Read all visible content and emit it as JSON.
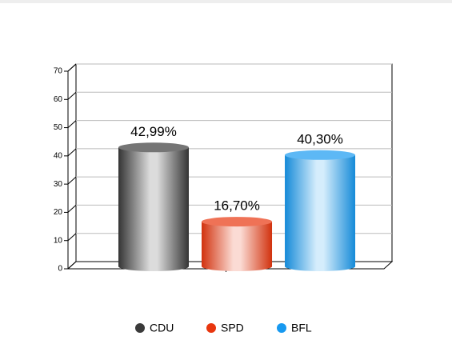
{
  "chart_data": {
    "type": "bar",
    "categories": [
      "CDU",
      "SPD",
      "BFL"
    ],
    "values": [
      42.99,
      16.7,
      40.3
    ],
    "value_labels": [
      "42,99%",
      "16,70%",
      "40,30%"
    ],
    "colors": [
      "#3a3a3a",
      "#e8360e",
      "#1799f0"
    ],
    "ylim": [
      0,
      70
    ],
    "yticks": [
      0,
      10,
      20,
      30,
      40,
      50,
      60,
      70
    ],
    "grid": true
  }
}
